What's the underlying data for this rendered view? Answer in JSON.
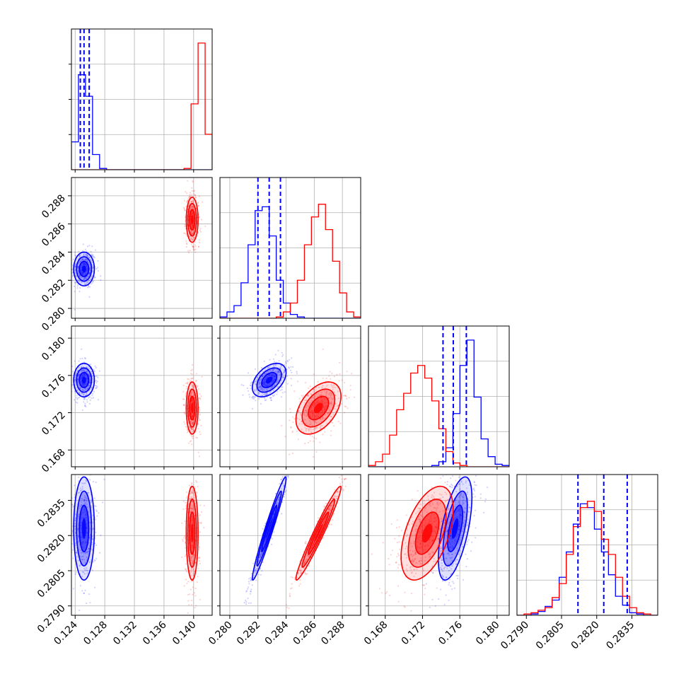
{
  "colors": {
    "series_a": "#0000ff",
    "series_b": "#ff0000",
    "grid": "#b0b0b0",
    "frame": "#000000"
  },
  "chart_data": {
    "type": "corner",
    "grid": true,
    "series": [
      {
        "color": "#0000ff",
        "mean": [
          0.1252,
          0.2828,
          0.1755,
          0.2823
        ],
        "std": [
          0.0007,
          0.0006,
          0.0009,
          0.0011
        ],
        "corr": {
          "1-0": 0.0,
          "2-0": 0.0,
          "2-1": 0.45,
          "3-0": 0.0,
          "3-1": 0.97,
          "3-2": 0.6
        },
        "quantiles_16_50_84": [
          [
            0.1247,
            0.1252,
            0.1259
          ],
          [
            0.282,
            0.2828,
            0.2836
          ],
          [
            0.1742,
            0.1753,
            0.1767
          ],
          [
            0.2812,
            0.2823,
            0.2833
          ]
        ]
      },
      {
        "color": "#ff0000",
        "mean": [
          0.1398,
          0.2863,
          0.1725,
          0.2821
        ],
        "std": [
          0.0004,
          0.0008,
          0.0014,
          0.001
        ],
        "corr": {
          "1-0": 0.0,
          "2-0": 0.0,
          "2-1": 0.45,
          "3-0": 0.0,
          "3-1": 0.97,
          "3-2": 0.5
        }
      }
    ],
    "diagonal_histograms": [
      {
        "dim": 0,
        "series_a": [
          0.22,
          0.75,
          0.58,
          0.12,
          0.01,
          0,
          0,
          0,
          0,
          0,
          0,
          0,
          0,
          0,
          0,
          0,
          0,
          0,
          0,
          0
        ],
        "series_b": [
          0,
          0,
          0,
          0,
          0,
          0,
          0,
          0,
          0,
          0,
          0,
          0,
          0,
          0,
          0,
          0,
          0.01,
          0.52,
          1.0,
          0.28
        ]
      },
      {
        "dim": 1,
        "series_a": [
          0.01,
          0.05,
          0.1,
          0.28,
          0.58,
          0.85,
          0.88,
          0.65,
          0.3,
          0.12,
          0.03,
          0.01,
          0,
          0,
          0,
          0,
          0,
          0,
          0,
          0
        ],
        "series_b": [
          0,
          0,
          0,
          0,
          0,
          0,
          0,
          0,
          0.01,
          0.05,
          0.12,
          0.3,
          0.58,
          0.8,
          0.9,
          0.7,
          0.45,
          0.2,
          0.05,
          0.01
        ]
      },
      {
        "dim": 2,
        "series_a": [
          0,
          0,
          0,
          0,
          0,
          0,
          0,
          0,
          0,
          0.01,
          0.04,
          0.15,
          0.42,
          0.8,
          1.0,
          0.55,
          0.22,
          0.08,
          0.02,
          0.01
        ],
        "series_b": [
          0.01,
          0.04,
          0.1,
          0.25,
          0.45,
          0.58,
          0.74,
          0.8,
          0.7,
          0.52,
          0.3,
          0.12,
          0.03,
          0.01,
          0,
          0,
          0,
          0,
          0,
          0
        ]
      },
      {
        "dim": 3,
        "series_a": [
          0,
          0,
          0.01,
          0.03,
          0.07,
          0.12,
          0.3,
          0.5,
          0.72,
          0.88,
          0.85,
          0.68,
          0.5,
          0.32,
          0.15,
          0.08,
          0.02,
          0.01,
          0,
          0
        ],
        "series_b": [
          0,
          0.01,
          0.02,
          0.04,
          0.06,
          0.14,
          0.25,
          0.48,
          0.7,
          0.85,
          0.9,
          0.82,
          0.6,
          0.48,
          0.3,
          0.15,
          0.06,
          0.02,
          0.01,
          0
        ]
      }
    ],
    "axes": [
      {
        "dim": 0,
        "range": [
          0.1235,
          0.1425
        ],
        "ticks": [
          "0.124",
          "0.128",
          "0.132",
          "0.136",
          "0.140"
        ]
      },
      {
        "dim": 1,
        "range": [
          0.2793,
          0.2893
        ],
        "ticks": [
          "0.280",
          "0.282",
          "0.284",
          "0.286",
          "0.288"
        ]
      },
      {
        "dim": 2,
        "range": [
          0.1662,
          0.1813
        ],
        "ticks": [
          "0.168",
          "0.172",
          "0.176",
          "0.180"
        ]
      },
      {
        "dim": 3,
        "range": [
          0.2786,
          0.2846
        ],
        "ticks": [
          "0.2790",
          "0.2805",
          "0.2820",
          "0.2835"
        ]
      }
    ]
  }
}
